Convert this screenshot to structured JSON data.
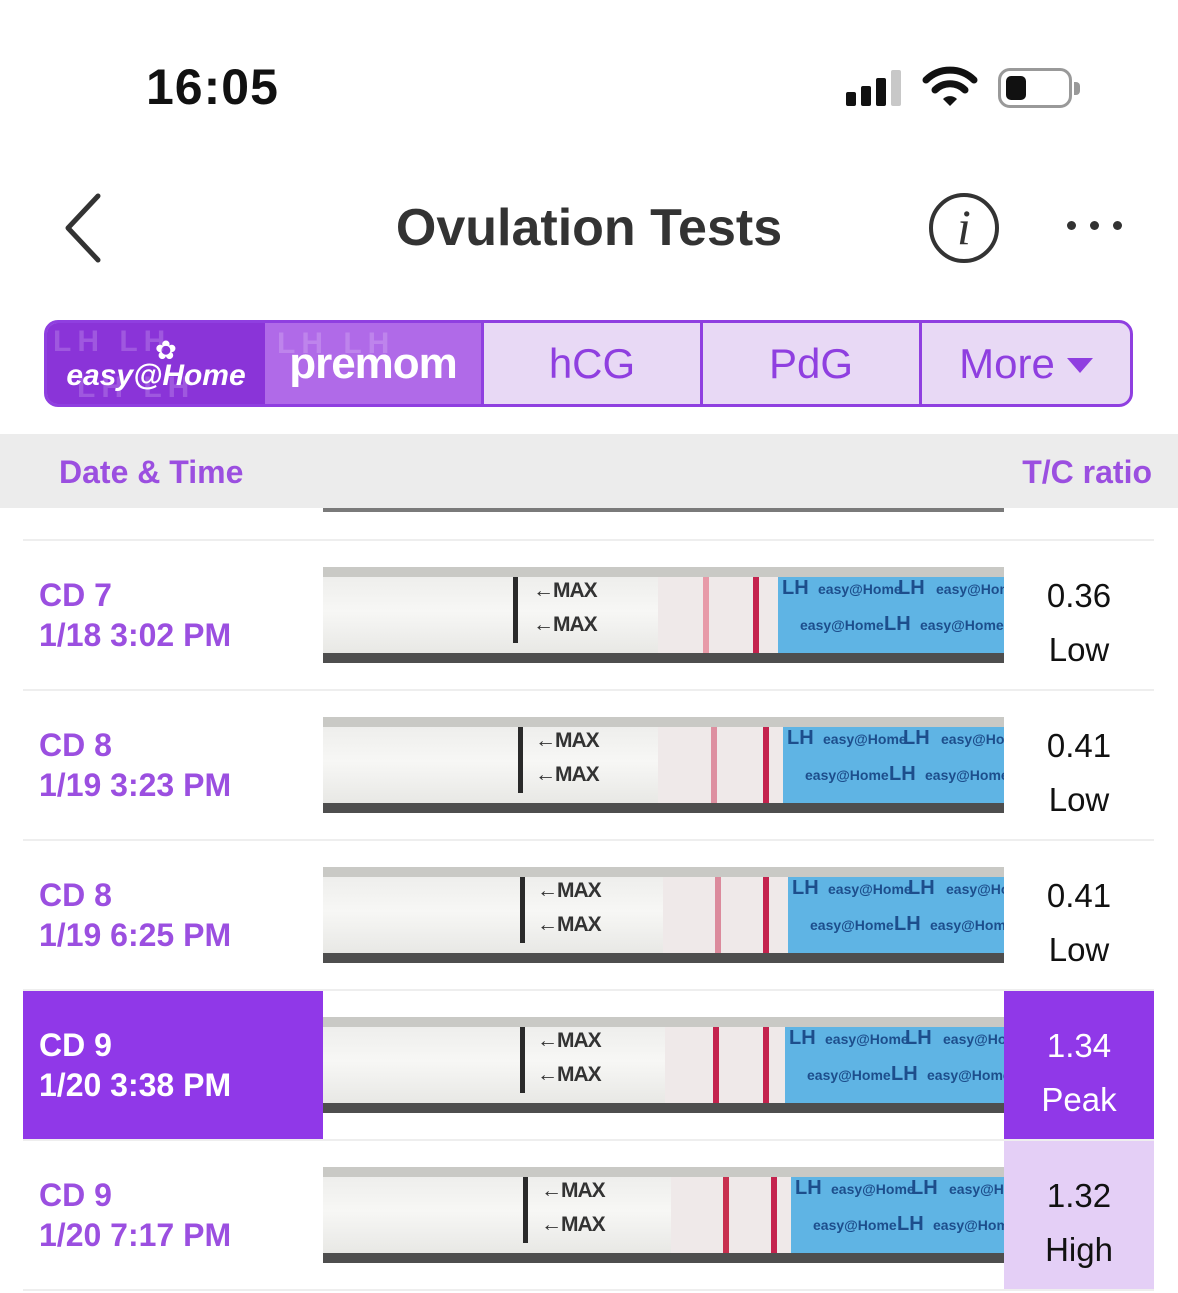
{
  "status_bar": {
    "time": "16:05"
  },
  "nav": {
    "title": "Ovulation Tests",
    "info_glyph": "i"
  },
  "segmented": {
    "brand_easy": "easy@Home",
    "brand_premom": "premom",
    "tabs": [
      "hCG",
      "PdG",
      "More"
    ]
  },
  "table_header": {
    "date_col": "Date & Time",
    "ratio_col": "T/C ratio"
  },
  "strip_text": {
    "max": "←MAX",
    "lh": "LH",
    "brand": "easy@Home"
  },
  "rows": [
    {
      "cycle_day": "CD 7",
      "datetime": "1/18 3:02 PM",
      "ratio": "0.36",
      "level": "Low",
      "test_line_color": "#e79aa8"
    },
    {
      "cycle_day": "CD 8",
      "datetime": "1/19 3:23 PM",
      "ratio": "0.41",
      "level": "Low",
      "test_line_color": "#dd8fa0"
    },
    {
      "cycle_day": "CD 8",
      "datetime": "1/19 6:25 PM",
      "ratio": "0.41",
      "level": "Low",
      "test_line_color": "#db8a9c"
    },
    {
      "cycle_day": "CD 9",
      "datetime": "1/20 3:38 PM",
      "ratio": "1.34",
      "level": "Peak",
      "test_line_color": "#c4234e"
    },
    {
      "cycle_day": "CD 9",
      "datetime": "1/20 7:17 PM",
      "ratio": "1.32",
      "level": "High",
      "test_line_color": "#c8304f"
    }
  ],
  "colors": {
    "accent": "#9038e8",
    "accent_text": "#9b4fe0",
    "high_bg": "#e4cff6",
    "control_line": "#c4234e",
    "strip_blue": "#5fb4e4"
  }
}
